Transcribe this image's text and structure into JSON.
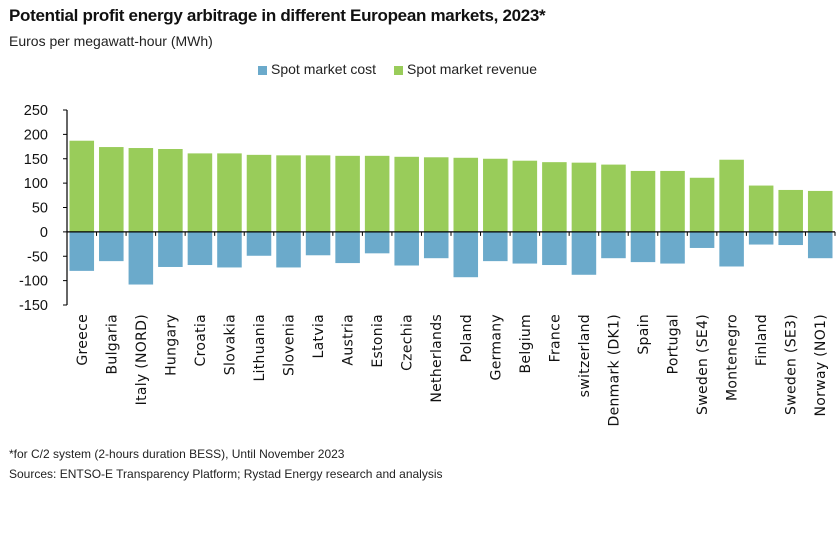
{
  "chart_data": {
    "type": "bar",
    "title": "Potential profit energy arbitrage in different European markets, 2023*",
    "subtitle": "Euros per megawatt-hour (MWh)",
    "ylim": [
      -150,
      250
    ],
    "yticks": [
      250,
      200,
      150,
      100,
      50,
      0,
      -50,
      -100,
      -150
    ],
    "grid": false,
    "legend_position": "top",
    "categories": [
      "Greece",
      "Bulgaria",
      "Italy (NORD)",
      "Hungary",
      "Croatia",
      "Slovakia",
      "Lithuania",
      "Slovenia",
      "Latvia",
      "Austria",
      "Estonia",
      "Czechia",
      "Netherlands",
      "Poland",
      "Germany",
      "Belgium",
      "France",
      "switzerland",
      "Denmark (DK1)",
      "Spain",
      "Portugal",
      "Sweden (SE4)",
      "Montenegro",
      "Finland",
      "Sweden (SE3)",
      "Norway (NO1)"
    ],
    "series": [
      {
        "name": "Spot market cost",
        "color": "#6BAACB",
        "values": [
          -80,
          -60,
          -108,
          -72,
          -68,
          -73,
          -49,
          -73,
          -48,
          -64,
          -44,
          -69,
          -54,
          -93,
          -60,
          -65,
          -68,
          -88,
          -54,
          -62,
          -65,
          -33,
          -71,
          -26,
          -27,
          -54
        ]
      },
      {
        "name": "Spot market revenue",
        "color": "#99CC5A",
        "values": [
          187,
          174,
          172,
          170,
          161,
          161,
          158,
          157,
          157,
          156,
          156,
          154,
          153,
          152,
          150,
          146,
          143,
          142,
          138,
          125,
          125,
          111,
          148,
          95,
          86,
          84
        ]
      }
    ]
  },
  "footnotes": {
    "note": "*for C/2 system (2-hours duration BESS), Until November 2023",
    "sources": "Sources: ENTSO-E Transparency Platform; Rystad Energy research and analysis"
  }
}
